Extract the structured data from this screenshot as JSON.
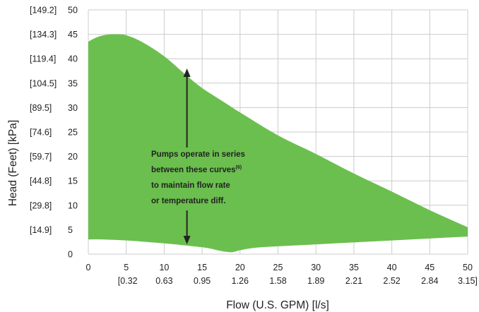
{
  "chart_data": {
    "type": "area",
    "xlabel": "Flow (U.S. GPM) [l/s]",
    "ylabel": "Head (Feet) [kPa]",
    "xlim": [
      0,
      50
    ],
    "ylim": [
      0,
      50
    ],
    "grid": true,
    "x_ticks": [
      "0",
      "5",
      "10",
      "15",
      "20",
      "25",
      "30",
      "35",
      "40",
      "45",
      "50"
    ],
    "x_ticks_secondary": [
      "[0.32",
      "0.63",
      "0.95",
      "1.26",
      "1.58",
      "1.89",
      "2.21",
      "2.52",
      "2.84",
      "3.15]"
    ],
    "y_ticks": [
      "0",
      "5",
      "10",
      "15",
      "20",
      "25",
      "30",
      "35",
      "40",
      "45",
      "50"
    ],
    "y_ticks_secondary": [
      "[14.9]",
      "[29.8]",
      "[44.8]",
      "[59.7]",
      "[74.6]",
      "[89.5]",
      "[104.5]",
      "[119.4]",
      "[134.3]",
      "[149.2]"
    ],
    "fill_color": "#6bbf4e",
    "grid_color": "#cccccc",
    "series": [
      {
        "x": [
          0,
          1,
          2,
          3,
          4,
          5,
          7,
          10,
          13,
          15,
          18,
          20,
          25,
          30,
          35,
          40,
          45,
          50
        ],
        "values": [
          43.5,
          44.3,
          44.8,
          45,
          45,
          44.8,
          43.5,
          40.5,
          36.5,
          34,
          31,
          29,
          24.3,
          20.5,
          16.5,
          12.8,
          9,
          5.5
        ]
      },
      {
        "x": [
          0,
          2,
          5,
          10,
          15,
          17,
          18,
          19,
          20,
          22,
          25,
          30,
          35,
          40,
          45,
          50
        ],
        "values": [
          3,
          3,
          2.8,
          2.2,
          1.4,
          0.8,
          0.5,
          0.4,
          0.8,
          1.3,
          1.6,
          2,
          2.4,
          2.8,
          3.2,
          3.6
        ]
      }
    ],
    "annotation": {
      "lines": [
        "Pumps operate in series",
        "between these curves",
        "to maintain flow rate",
        "or temperature diff."
      ],
      "superscript": "(6)",
      "arrow_x": 13,
      "arrow_y_from": 2,
      "arrow_y_to": 38
    }
  }
}
